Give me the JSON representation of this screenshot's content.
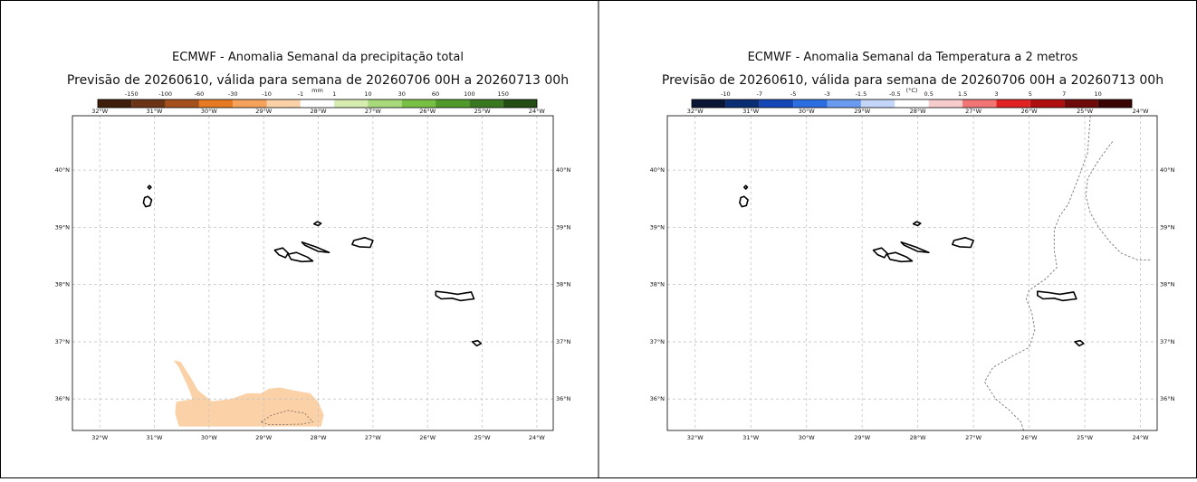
{
  "panels": [
    {
      "id": "precip",
      "title": "ECMWF - Anomalia Semanal da precipitação total",
      "subtitle": "Previsão de 20260610, válida para semana de 20260706 00H a 20260713 00h",
      "colorbar": {
        "unit": "mm",
        "ticks": [
          "-150",
          "-100",
          "-60",
          "-30",
          "-10",
          "-1",
          "1",
          "10",
          "30",
          "60",
          "100",
          "150"
        ],
        "colors": [
          "#3e1d0b",
          "#6b3414",
          "#a5501c",
          "#e67a23",
          "#f4a25c",
          "#fbd1a8",
          "#ffffff",
          "#d6ecb0",
          "#a8d97a",
          "#77bf45",
          "#4f9a2b",
          "#3a7820",
          "#234d12"
        ]
      },
      "map": {
        "lon_ticks": [
          "32°W",
          "31°W",
          "30°W",
          "29°W",
          "28°W",
          "27°W",
          "26°W",
          "25°W",
          "24°W"
        ],
        "lat_ticks": [
          "40°N",
          "39°N",
          "38°N",
          "37°N",
          "36°N"
        ],
        "grid": true
      },
      "overlay": {
        "type": "shaded_region",
        "color": "#fbd1a8",
        "class": "-10 to -1 mm",
        "polygon_lonlat": [
          [
            -30.65,
            36.68
          ],
          [
            -30.55,
            36.55
          ],
          [
            -30.38,
            36.2
          ],
          [
            -30.3,
            36.0
          ],
          [
            -30.6,
            35.95
          ],
          [
            -30.62,
            35.75
          ],
          [
            -30.55,
            35.52
          ],
          [
            -27.95,
            35.52
          ],
          [
            -27.9,
            35.72
          ],
          [
            -28.0,
            35.95
          ],
          [
            -28.15,
            36.1
          ],
          [
            -28.45,
            36.15
          ],
          [
            -28.7,
            36.2
          ],
          [
            -28.9,
            36.18
          ],
          [
            -29.05,
            36.1
          ],
          [
            -29.3,
            36.1
          ],
          [
            -29.6,
            36.0
          ],
          [
            -29.95,
            35.96
          ],
          [
            -30.2,
            36.15
          ],
          [
            -30.35,
            36.4
          ],
          [
            -30.52,
            36.65
          ]
        ],
        "inner_dashed_lonlat": [
          [
            -29.05,
            35.6
          ],
          [
            -28.85,
            35.72
          ],
          [
            -28.55,
            35.8
          ],
          [
            -28.25,
            35.75
          ],
          [
            -28.1,
            35.6
          ],
          [
            -28.3,
            35.56
          ],
          [
            -28.9,
            35.55
          ]
        ]
      }
    },
    {
      "id": "temp",
      "title": "ECMWF - Anomalia Semanal da Temperatura a 2 metros",
      "subtitle": "Previsão de 20260610, válida para semana de 20260706 00H a 20260713 00h",
      "colorbar": {
        "unit": "(°C)",
        "ticks": [
          "-10",
          "-7",
          "-5",
          "-3",
          "-1.5",
          "-0.5",
          "0.5",
          "1.5",
          "3",
          "5",
          "7",
          "10"
        ],
        "colors": [
          "#0b1636",
          "#0a2d74",
          "#1446b8",
          "#2c6ee0",
          "#6a9bf0",
          "#c3d6f7",
          "#ffffff",
          "#f7cccc",
          "#f27575",
          "#e02222",
          "#b00f0f",
          "#6e0a0a",
          "#3a0404"
        ]
      },
      "map": {
        "lon_ticks": [
          "32°W",
          "31°W",
          "30°W",
          "29°W",
          "28°W",
          "27°W",
          "26°W",
          "25°W",
          "24°W"
        ],
        "lat_ticks": [
          "40°N",
          "39°N",
          "38°N",
          "37°N",
          "36°N"
        ],
        "grid": true
      },
      "overlay": {
        "type": "dashed_contours",
        "lines_lonlat": [
          [
            [
              -26.1,
              35.45
            ],
            [
              -26.15,
              35.6
            ],
            [
              -26.35,
              35.8
            ],
            [
              -26.6,
              36.0
            ],
            [
              -26.8,
              36.3
            ],
            [
              -26.65,
              36.55
            ],
            [
              -26.3,
              36.75
            ],
            [
              -26.0,
              36.9
            ],
            [
              -25.9,
              37.2
            ],
            [
              -25.95,
              37.5
            ],
            [
              -26.05,
              37.75
            ],
            [
              -26.0,
              37.9
            ],
            [
              -25.7,
              38.1
            ],
            [
              -25.5,
              38.3
            ],
            [
              -25.55,
              38.6
            ],
            [
              -25.55,
              38.95
            ],
            [
              -25.45,
              39.2
            ],
            [
              -25.3,
              39.4
            ],
            [
              -25.2,
              39.65
            ],
            [
              -25.1,
              39.9
            ],
            [
              -24.95,
              40.3
            ],
            [
              -24.9,
              40.95
            ]
          ],
          [
            [
              -24.5,
              40.5
            ],
            [
              -24.62,
              40.35
            ],
            [
              -24.8,
              40.1
            ],
            [
              -24.95,
              39.85
            ],
            [
              -24.98,
              39.55
            ],
            [
              -24.9,
              39.25
            ],
            [
              -24.75,
              39.0
            ],
            [
              -24.55,
              38.75
            ],
            [
              -24.35,
              38.55
            ],
            [
              -24.05,
              38.43
            ],
            [
              -23.8,
              38.43
            ]
          ]
        ]
      }
    }
  ],
  "islands_lonlat": [
    [
      [
        -31.2,
        39.43
      ],
      [
        -31.18,
        39.52
      ],
      [
        -31.12,
        39.54
      ],
      [
        -31.05,
        39.48
      ],
      [
        -31.08,
        39.38
      ],
      [
        -31.16,
        39.36
      ]
    ],
    [
      [
        -31.12,
        39.7
      ],
      [
        -31.09,
        39.73
      ],
      [
        -31.06,
        39.7
      ],
      [
        -31.09,
        39.67
      ]
    ],
    [
      [
        -28.08,
        39.06
      ],
      [
        -28.02,
        39.1
      ],
      [
        -27.95,
        39.07
      ],
      [
        -28.0,
        39.03
      ]
    ],
    [
      [
        -27.35,
        38.77
      ],
      [
        -27.15,
        38.82
      ],
      [
        -27.0,
        38.77
      ],
      [
        -27.05,
        38.65
      ],
      [
        -27.25,
        38.66
      ],
      [
        -27.38,
        38.7
      ]
    ],
    [
      [
        -28.3,
        38.74
      ],
      [
        -28.05,
        38.66
      ],
      [
        -27.8,
        38.56
      ],
      [
        -28.0,
        38.58
      ],
      [
        -28.25,
        38.69
      ]
    ],
    [
      [
        -28.8,
        38.6
      ],
      [
        -28.65,
        38.64
      ],
      [
        -28.55,
        38.55
      ],
      [
        -28.6,
        38.47
      ],
      [
        -28.72,
        38.52
      ]
    ],
    [
      [
        -28.55,
        38.53
      ],
      [
        -28.4,
        38.56
      ],
      [
        -28.2,
        38.48
      ],
      [
        -28.1,
        38.41
      ],
      [
        -28.3,
        38.4
      ],
      [
        -28.5,
        38.44
      ]
    ],
    [
      [
        -25.85,
        37.88
      ],
      [
        -25.65,
        37.86
      ],
      [
        -25.45,
        37.83
      ],
      [
        -25.2,
        37.87
      ],
      [
        -25.15,
        37.75
      ],
      [
        -25.4,
        37.72
      ],
      [
        -25.55,
        37.76
      ],
      [
        -25.75,
        37.75
      ],
      [
        -25.85,
        37.81
      ]
    ],
    [
      [
        -25.18,
        37.0
      ],
      [
        -25.08,
        37.02
      ],
      [
        -25.02,
        36.97
      ],
      [
        -25.1,
        36.93
      ]
    ]
  ]
}
